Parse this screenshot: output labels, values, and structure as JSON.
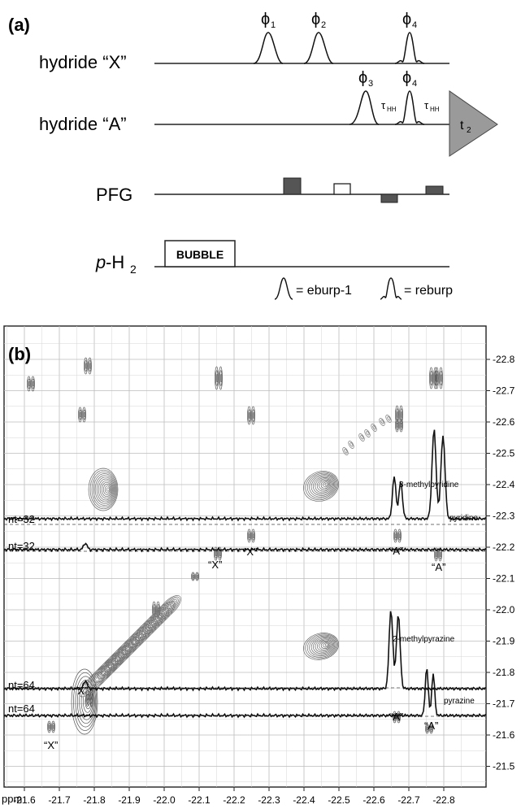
{
  "panel_a": {
    "label": "(a)",
    "channels": {
      "hydride_x": "hydride “X”",
      "hydride_a": "hydride “A”",
      "pfg": "PFG",
      "ph2_prefix": "p",
      "ph2_suffix": "-H",
      "ph2_sub": "2"
    },
    "phases": {
      "x1": "ϕ",
      "x1_sub": "1",
      "x2": "ϕ",
      "x2_sub": "2",
      "x4": "ϕ",
      "x4_sub": "4",
      "a3": "ϕ",
      "a3_sub": "3",
      "a4": "ϕ",
      "a4_sub": "4"
    },
    "tau": "τ",
    "tau_sub": "HH",
    "acq": "t",
    "acq_sub": "2",
    "bubble": "BUBBLE",
    "legend": {
      "eburp": "= eburp-1",
      "reburp": "= reburp"
    }
  },
  "panel_b": {
    "label": "(b)",
    "x_axis_unit": "ppm",
    "x_ticks": [
      "-21.6",
      "-21.7",
      "-21.8",
      "-21.9",
      "-22.0",
      "-22.1",
      "-22.2",
      "-22.3",
      "-22.4",
      "-22.5",
      "-22.6",
      "-22.7",
      "-22.8"
    ],
    "y_ticks": [
      "-22.8",
      "-22.7",
      "-22.6",
      "-22.5",
      "-22.4",
      "-22.3",
      "-22.2",
      "-22.1",
      "-22.0",
      "-21.9",
      "-21.8",
      "-21.7",
      "-21.6",
      "-21.5"
    ],
    "traces": [
      {
        "nt": "nt=32"
      },
      {
        "nt": "nt=32"
      },
      {
        "nt": "nt=64"
      },
      {
        "nt": "nt=64"
      }
    ],
    "annotations": {
      "methylpyridine": "3-methylpyridine",
      "pyridine": "pyridine",
      "methylpyrazine": "2-methylpyrazine",
      "pyrazine": "pyrazine",
      "x_label": "“X”",
      "a_label": "“A”"
    }
  }
}
